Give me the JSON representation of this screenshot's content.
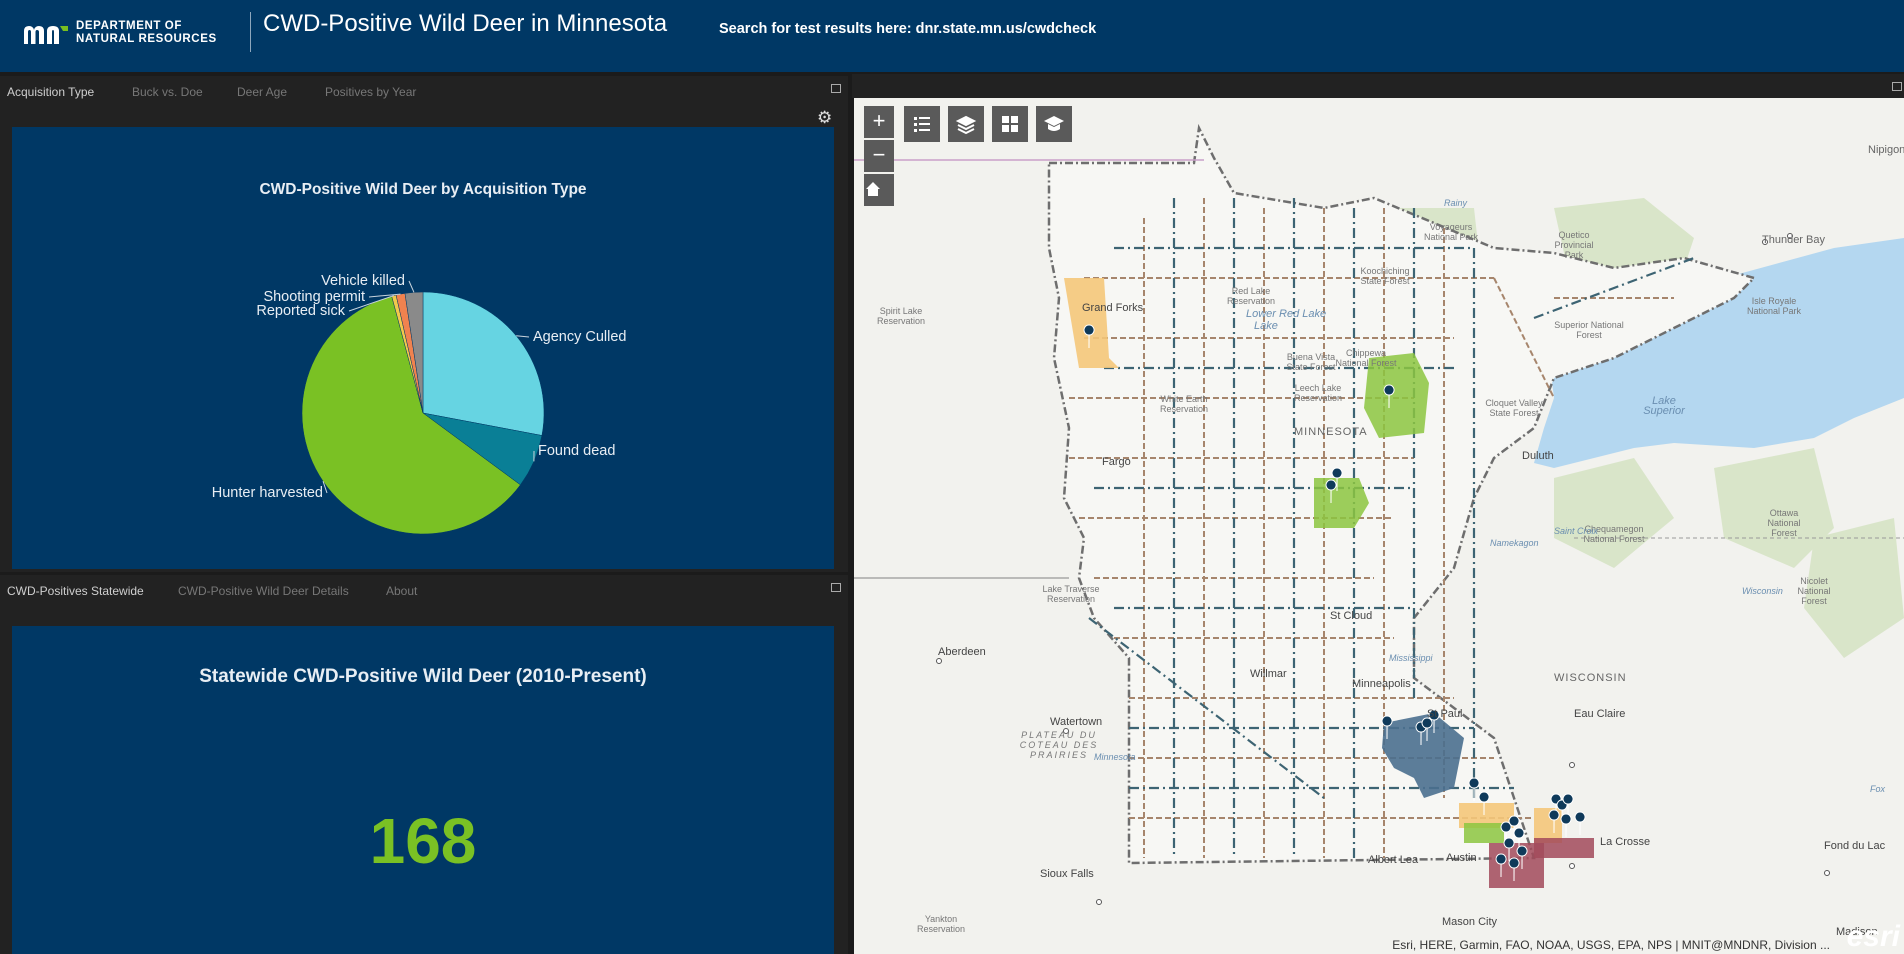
{
  "header": {
    "logo_line1": "DEPARTMENT OF",
    "logo_line2": "NATURAL RESOURCES",
    "title": "CWD-Positive Wild Deer in Minnesota",
    "search_note": "Search for test results here: dnr.state.mn.us/cwdcheck"
  },
  "top_panel": {
    "tabs": [
      "Acquisition Type",
      "Buck vs. Doe",
      "Deer Age",
      "Positives by Year"
    ],
    "active_tab": 0
  },
  "bottom_panel": {
    "tabs": [
      "CWD-Positives Statewide",
      "CWD-Positive Wild Deer Details",
      "About"
    ],
    "active_tab": 0,
    "title": "Statewide CWD-Positive Wild Deer (2010-Present)",
    "value": "168"
  },
  "chart_data": {
    "type": "pie",
    "title": "CWD-Positive Wild Deer by Acquisition Type",
    "labels": [
      "Agency Culled",
      "Found dead",
      "Hunter harvested",
      "Reported sick",
      "Shooting permit",
      "Vehicle killed"
    ],
    "values": [
      47,
      12,
      102,
      1,
      2,
      4
    ],
    "colors": [
      "#66d4e2",
      "#0a7f96",
      "#7ac124",
      "#f2c94c",
      "#f0824f",
      "#8a8a8a"
    ]
  },
  "map": {
    "attribution": "Esri, HERE, Garmin, FAO, NOAA, USGS, EPA, NPS | MNIT@MNDNR, Division ...",
    "esri_logo": "esri",
    "labels": [
      "Nipigon",
      "Thunder Bay",
      "Isle Royale National Park",
      "Lake Superior",
      "Quetico Provincial Park",
      "Voyageurs National Park",
      "Koochiching State Forest",
      "Red Lake Reservation",
      "Lower Red Lake",
      "Spirit Lake Reservation",
      "Grand Forks",
      "Fargo",
      "MINNESOTA",
      "Duluth",
      "Superior National Forest",
      "White Earth Reservation",
      "Leech Lake Reservation",
      "Chippewa National Forest",
      "Buena Vista State Forest",
      "Cloquet Valley State Forest",
      "Ottawa National Forest",
      "Chequamegon National Forest",
      "Nicolet National Forest",
      "St Cloud",
      "Minneapolis",
      "St Paul",
      "WISCONSIN",
      "Eau Claire",
      "Willmar",
      "Aberdeen",
      "Watertown",
      "Lake Traverse Reservation",
      "PLATEAU DU COTEAU DES PRAIRIES",
      "Sioux Falls",
      "Albert Lea",
      "Austin",
      "La Crosse",
      "Mason City",
      "Fond du Lac",
      "Madison",
      "Yankton Reservation",
      "Saint Croix",
      "Rainy",
      "Lake",
      "Wisconsin",
      "Fox",
      "Minnesota",
      "Mississippi",
      "Namekagon"
    ]
  }
}
